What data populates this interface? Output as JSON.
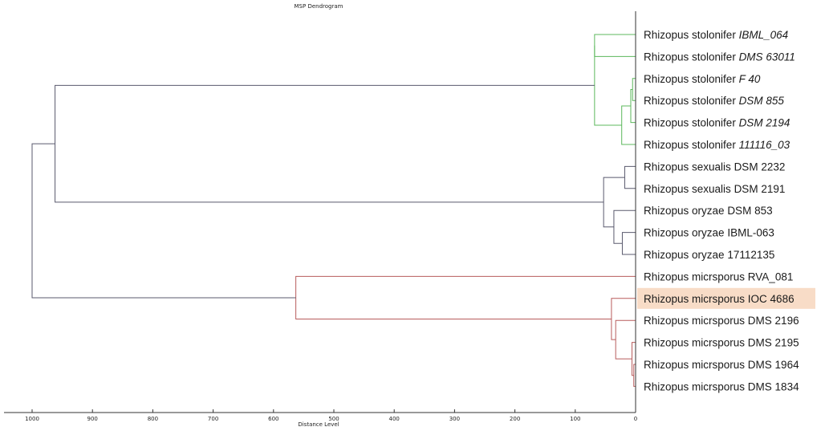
{
  "chart_data": {
    "type": "dendrogram",
    "title": "MSP Dendrogram",
    "xlabel": "Distance Level",
    "xlim": [
      1000,
      0
    ],
    "x_ticks": [
      "1000",
      "900",
      "800",
      "700",
      "600",
      "500",
      "400",
      "300",
      "200",
      "100",
      "0"
    ],
    "leaves": [
      {
        "name": "Rhizopus stolonifer",
        "strain": "IBML_064",
        "italic": true,
        "color": "#5cb85c"
      },
      {
        "name": "Rhizopus stolonifer",
        "strain": "DMS 63011",
        "italic": true,
        "color": "#5cb85c"
      },
      {
        "name": "Rhizopus stolonifer",
        "strain": "F 40",
        "italic": true,
        "color": "#5cb85c"
      },
      {
        "name": "Rhizopus stolonifer",
        "strain": "DSM 855",
        "italic": true,
        "color": "#5cb85c"
      },
      {
        "name": "Rhizopus stolonifer",
        "strain": "DSM 2194",
        "italic": true,
        "color": "#5cb85c"
      },
      {
        "name": "Rhizopus stolonifer",
        "strain": "111116_03",
        "italic": true,
        "color": "#5cb85c"
      },
      {
        "name": "Rhizopus sexualis",
        "strain": "DSM 2232",
        "italic": false,
        "color": "#5a5a6e"
      },
      {
        "name": "Rhizopus sexualis",
        "strain": "DSM 2191",
        "italic": false,
        "color": "#5a5a6e"
      },
      {
        "name": "Rhizopus oryzae",
        "strain": "DSM 853",
        "italic": false,
        "color": "#5a5a6e"
      },
      {
        "name": "Rhizopus oryzae",
        "strain": "IBML-063",
        "italic": false,
        "color": "#5a5a6e"
      },
      {
        "name": "Rhizopus oryzae",
        "strain": "17112135",
        "italic": false,
        "color": "#5a5a6e"
      },
      {
        "name": "Rhizopus micrsporus",
        "strain": "RVA_081",
        "italic": false,
        "color": "#b85c5c"
      },
      {
        "name": "Rhizopus micrsporus",
        "strain": "IOC 4686",
        "italic": false,
        "color": "#b85c5c",
        "highlighted": true
      },
      {
        "name": "Rhizopus micrsporus",
        "strain": "DMS 2196",
        "italic": false,
        "color": "#b85c5c"
      },
      {
        "name": "Rhizopus micrsporus",
        "strain": "DMS 2195",
        "italic": false,
        "color": "#b85c5c"
      },
      {
        "name": "Rhizopus micrsporus",
        "strain": "DMS 1964",
        "italic": false,
        "color": "#b85c5c"
      },
      {
        "name": "Rhizopus micrsporus",
        "strain": "DMS 1834",
        "italic": false,
        "color": "#b85c5c"
      }
    ],
    "merges": [
      {
        "a": 2,
        "b": 3,
        "distance": 5,
        "color": "#5cb85c"
      },
      {
        "a": 4,
        "b": 17,
        "distance": 8,
        "color": "#5cb85c"
      },
      {
        "a": 5,
        "b": 18,
        "distance": 23,
        "color": "#5cb85c"
      },
      {
        "a": 0,
        "b": 1,
        "distance": 68,
        "color": "#5cb85c"
      },
      {
        "a": 19,
        "b": 20,
        "distance": 68,
        "color": "#5cb85c"
      },
      {
        "a": 6,
        "b": 7,
        "distance": 18,
        "color": "#5a5a6e"
      },
      {
        "a": 9,
        "b": 10,
        "distance": 22,
        "color": "#5a5a6e"
      },
      {
        "a": 8,
        "b": 23,
        "distance": 36,
        "color": "#5a5a6e"
      },
      {
        "a": 22,
        "b": 24,
        "distance": 53,
        "color": "#5a5a6e"
      },
      {
        "a": 15,
        "b": 16,
        "distance": 3,
        "color": "#b85c5c"
      },
      {
        "a": 14,
        "b": 26,
        "distance": 6,
        "color": "#b85c5c"
      },
      {
        "a": 13,
        "b": 27,
        "distance": 33,
        "color": "#b85c5c"
      },
      {
        "a": 12,
        "b": 28,
        "distance": 40,
        "color": "#b85c5c"
      },
      {
        "a": 11,
        "b": 29,
        "distance": 563,
        "color": "#b85c5c"
      },
      {
        "a": 21,
        "b": 25,
        "distance": 962,
        "color": "#5a5a6e"
      },
      {
        "a": 31,
        "b": 30,
        "distance": 1000,
        "color": "#5a5a6e"
      }
    ],
    "highlight_color": "#f8dcc7"
  }
}
